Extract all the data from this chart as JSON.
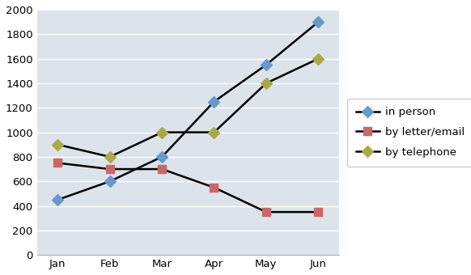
{
  "months": [
    "Jan",
    "Feb",
    "Mar",
    "Apr",
    "May",
    "Jun"
  ],
  "in_person": [
    450,
    600,
    800,
    1250,
    1550,
    1900
  ],
  "by_letter_email": [
    750,
    700,
    700,
    550,
    350,
    350
  ],
  "by_telephone": [
    900,
    800,
    1000,
    1000,
    1400,
    1600
  ],
  "series_labels": [
    "in person",
    "by letter/email",
    "by telephone"
  ],
  "line_color": "#000000",
  "in_person_marker_color": "#6699cc",
  "letter_marker_color": "#cc6666",
  "telephone_marker_color": "#aaaa44",
  "ylim": [
    0,
    2000
  ],
  "ytick_step": 200,
  "plot_bg_color": "#dce3ea",
  "outer_bg_color": "#ffffff",
  "grid_color": "#ffffff",
  "legend_fontsize": 9.5,
  "axis_fontsize": 9.5
}
